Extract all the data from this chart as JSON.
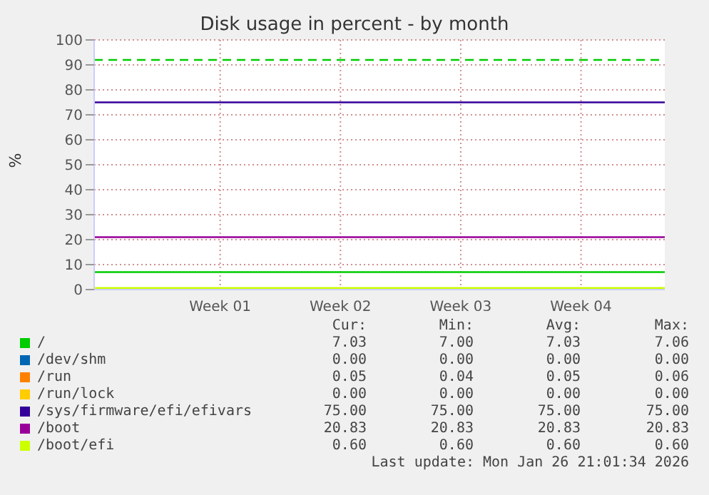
{
  "chart_data": {
    "type": "line",
    "title": "Disk usage in percent - by month",
    "ylabel": "%",
    "x": [
      "2025-12-24T16:00",
      "2026-01-26T21:00"
    ],
    "xlim": [
      "2025-12-24T16:00",
      "2026-01-26T21:00"
    ],
    "xticks": [
      {
        "value": "2026-01-01",
        "label": "Week 01"
      },
      {
        "value": "2026-01-08",
        "label": "Week 02"
      },
      {
        "value": "2026-01-15",
        "label": "Week 03"
      },
      {
        "value": "2026-01-22",
        "label": "Week 04"
      }
    ],
    "ylim": [
      0,
      100
    ],
    "yticks": [
      0,
      10,
      20,
      30,
      40,
      50,
      60,
      70,
      80,
      90,
      100
    ],
    "series": [
      {
        "name": "/",
        "color": "#00cc00",
        "values": [
          7,
          7
        ]
      },
      {
        "name": "/dev/shm",
        "color": "#0066b3",
        "values": [
          null,
          null
        ]
      },
      {
        "name": "/run",
        "color": "#ff8000",
        "values": [
          null,
          null
        ]
      },
      {
        "name": "/run/lock",
        "color": "#ffcc00",
        "values": [
          null,
          null
        ]
      },
      {
        "name": "/sys/firmware/efi/efivars",
        "color": "#330099",
        "values": [
          75,
          75
        ]
      },
      {
        "name": "/boot",
        "color": "#990099",
        "values": [
          21,
          21
        ]
      },
      {
        "name": "/boot/efi",
        "color": "#ccff00",
        "values": [
          0.6,
          0.6
        ]
      }
    ],
    "ref_lines": [
      {
        "axis": "y",
        "value": 92,
        "color": "#00cc00",
        "line_style": "dashed"
      }
    ],
    "annotations": [
      "Cur:",
      "Min:",
      "Avg:",
      "Max:",
      "7.03",
      "7.00",
      "7.03",
      "7.06",
      "0.00",
      "0.00",
      "0.00",
      "0.00",
      "0.05",
      "0.04",
      "0.05",
      "0.06",
      "0.00",
      "0.00",
      "0.00",
      "0.00",
      "75.00",
      "75.00",
      "75.00",
      "75.00",
      "20.83",
      "20.83",
      "20.83",
      "20.83",
      "0.60",
      "0.60",
      "0.60",
      "0.60",
      "Last update: Mon Jan 26 21:01:34 2026"
    ],
    "grid": true,
    "legend": "bottom",
    "marker": "none"
  }
}
